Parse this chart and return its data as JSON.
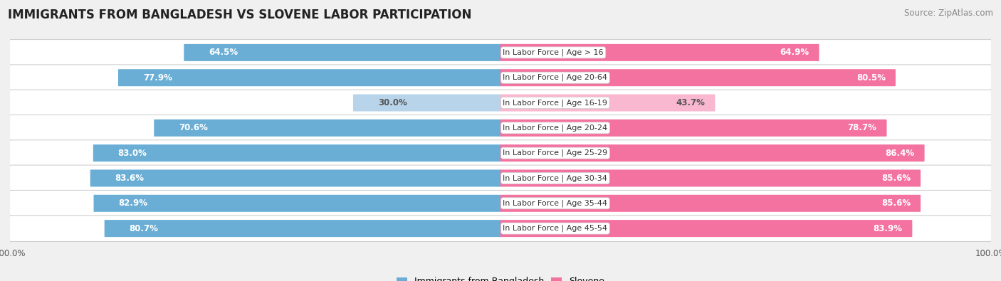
{
  "title": "IMMIGRANTS FROM BANGLADESH VS SLOVENE LABOR PARTICIPATION",
  "source": "Source: ZipAtlas.com",
  "categories": [
    "In Labor Force | Age > 16",
    "In Labor Force | Age 20-64",
    "In Labor Force | Age 16-19",
    "In Labor Force | Age 20-24",
    "In Labor Force | Age 25-29",
    "In Labor Force | Age 30-34",
    "In Labor Force | Age 35-44",
    "In Labor Force | Age 45-54"
  ],
  "bangladesh_values": [
    64.5,
    77.9,
    30.0,
    70.6,
    83.0,
    83.6,
    82.9,
    80.7
  ],
  "slovene_values": [
    64.9,
    80.5,
    43.7,
    78.7,
    86.4,
    85.6,
    85.6,
    83.9
  ],
  "bangladesh_color": "#6aaed6",
  "bangladesh_color_light": "#b8d4ea",
  "slovene_color": "#f472a0",
  "slovene_color_light": "#f9b8cf",
  "label_color_dark": "#555555",
  "label_color_white": "#ffffff",
  "bg_color": "#f0f0f0",
  "row_bg_color": "#ffffff",
  "row_border_color": "#d0d0d0",
  "title_fontsize": 12,
  "source_fontsize": 8.5,
  "bar_label_fontsize": 8.5,
  "category_label_fontsize": 8,
  "legend_fontsize": 9,
  "axis_label_fontsize": 8.5,
  "max_value": 100.0,
  "legend_labels": [
    "Immigrants from Bangladesh",
    "Slovene"
  ]
}
